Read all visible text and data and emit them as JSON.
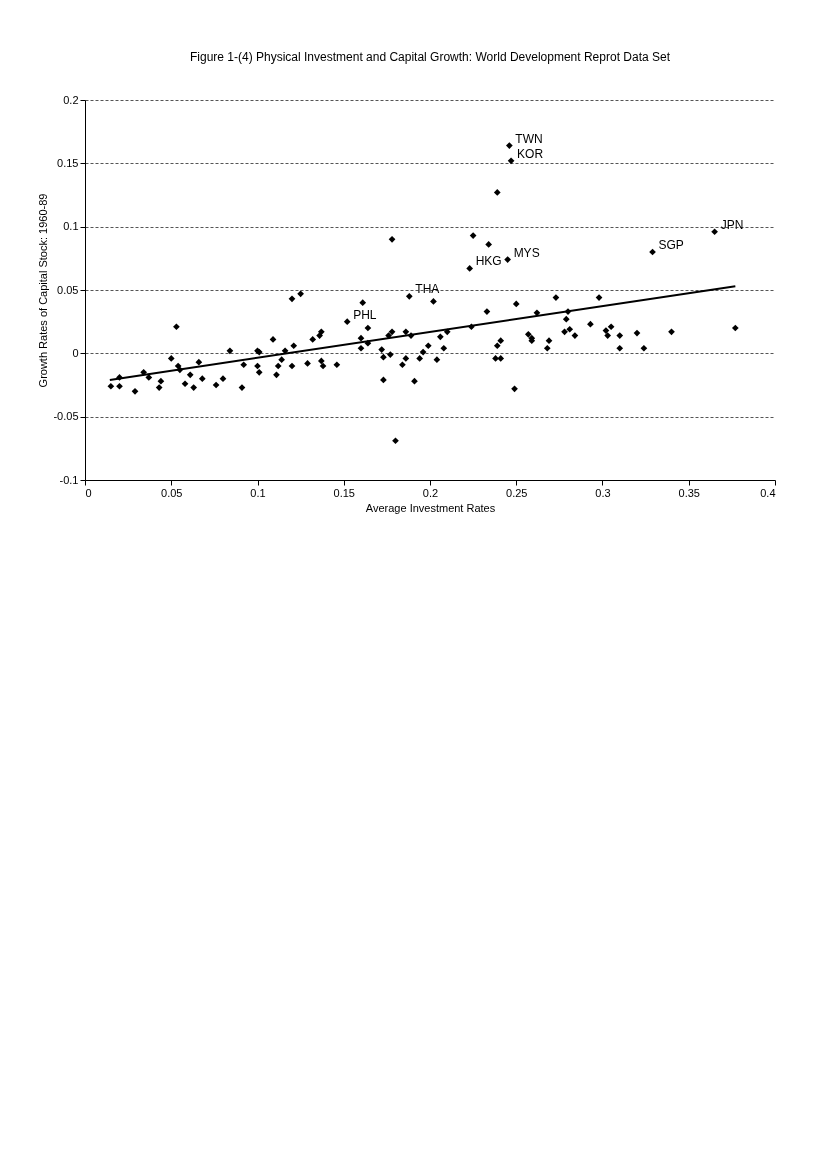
{
  "chart_data": {
    "type": "scatter",
    "title": "Figure 1-(4) Physical Investment and Capital Growth: World Development Reprot Data Set",
    "xlabel": "Average Investment Rates",
    "ylabel": "Growth Rates of Capital Stock: 1960-89",
    "xlim": [
      0,
      0.4
    ],
    "ylim": [
      -0.1,
      0.2
    ],
    "xticks": [
      0,
      0.05,
      0.1,
      0.15,
      0.2,
      0.25,
      0.3,
      0.35,
      0.4
    ],
    "yticks": [
      -0.1,
      -0.05,
      0,
      0.05,
      0.1,
      0.15,
      0.2
    ],
    "grid": "y",
    "series": [
      {
        "type": "scatter",
        "marker": "diamond",
        "color": "#000000",
        "x": [
          0.377,
          0.365,
          0.34,
          0.329,
          0.324,
          0.32,
          0.31,
          0.31,
          0.305,
          0.302,
          0.303,
          0.298,
          0.293,
          0.284,
          0.28,
          0.279,
          0.281,
          0.278,
          0.273,
          0.269,
          0.268,
          0.262,
          0.257,
          0.259,
          0.259,
          0.25,
          0.249,
          0.239,
          0.245,
          0.234,
          0.233,
          0.241,
          0.239,
          0.241,
          0.238,
          0.225,
          0.223,
          0.224,
          0.21,
          0.206,
          0.208,
          0.204,
          0.202,
          0.199,
          0.196,
          0.194,
          0.191,
          0.246,
          0.247,
          0.188,
          0.189,
          0.186,
          0.186,
          0.184,
          0.178,
          0.18,
          0.178,
          0.176,
          0.177,
          0.172,
          0.173,
          0.173,
          0.164,
          0.164,
          0.161,
          0.16,
          0.16,
          0.152,
          0.146,
          0.138,
          0.137,
          0.136,
          0.137,
          0.132,
          0.129,
          0.125,
          0.12,
          0.121,
          0.12,
          0.116,
          0.114,
          0.112,
          0.111,
          0.109,
          0.1,
          0.101,
          0.1,
          0.101,
          0.092,
          0.091,
          0.084,
          0.08,
          0.076,
          0.068,
          0.066,
          0.063,
          0.061,
          0.058,
          0.054,
          0.055,
          0.053,
          0.05,
          0.044,
          0.043,
          0.037,
          0.034,
          0.029,
          0.02,
          0.02,
          0.015
        ],
        "values": [
          0.02,
          0.096,
          0.017,
          0.08,
          0.004,
          0.016,
          0.014,
          0.004,
          0.021,
          0.018,
          0.014,
          0.044,
          0.023,
          0.014,
          0.033,
          0.027,
          0.019,
          0.017,
          0.044,
          0.01,
          0.004,
          0.032,
          0.015,
          0.012,
          0.01,
          0.039,
          -0.028,
          0.127,
          0.074,
          0.086,
          0.033,
          0.01,
          0.006,
          -0.004,
          -0.004,
          0.093,
          0.067,
          0.021,
          0.017,
          0.013,
          0.004,
          -0.005,
          0.041,
          0.006,
          0.001,
          -0.004,
          -0.022,
          0.164,
          0.152,
          0.045,
          0.014,
          0.017,
          -0.004,
          -0.009,
          0.09,
          -0.069,
          0.017,
          0.014,
          -0.001,
          0.003,
          -0.003,
          -0.021,
          0.02,
          0.008,
          0.04,
          0.012,
          0.004,
          0.025,
          -0.009,
          -0.01,
          0.017,
          0.014,
          -0.006,
          0.011,
          -0.008,
          0.047,
          0.043,
          0.006,
          -0.01,
          0.002,
          -0.005,
          -0.01,
          -0.017,
          0.011,
          0.002,
          0.001,
          -0.01,
          -0.015,
          -0.009,
          -0.027,
          0.002,
          -0.02,
          -0.025,
          -0.02,
          -0.007,
          -0.027,
          -0.017,
          -0.024,
          -0.01,
          -0.013,
          0.021,
          -0.004,
          -0.022,
          -0.027,
          -0.019,
          -0.015,
          -0.03,
          -0.019,
          -0.026,
          -0.026
        ]
      },
      {
        "type": "line",
        "color": "#000000",
        "x": [
          0.0144,
          0.377
        ],
        "values": [
          -0.021,
          0.053
        ]
      }
    ],
    "annotations": [
      {
        "text": "JPN",
        "x": 0.365,
        "y": 0.096
      },
      {
        "text": "SGP",
        "x": 0.329,
        "y": 0.08
      },
      {
        "text": "TWN",
        "x": 0.246,
        "y": 0.164
      },
      {
        "text": "KOR",
        "x": 0.247,
        "y": 0.152
      },
      {
        "text": "MYS",
        "x": 0.245,
        "y": 0.074
      },
      {
        "text": "HKG",
        "x": 0.223,
        "y": 0.067
      },
      {
        "text": "THA",
        "x": 0.188,
        "y": 0.045
      },
      {
        "text": "PHL",
        "x": 0.152,
        "y": 0.025
      }
    ]
  }
}
